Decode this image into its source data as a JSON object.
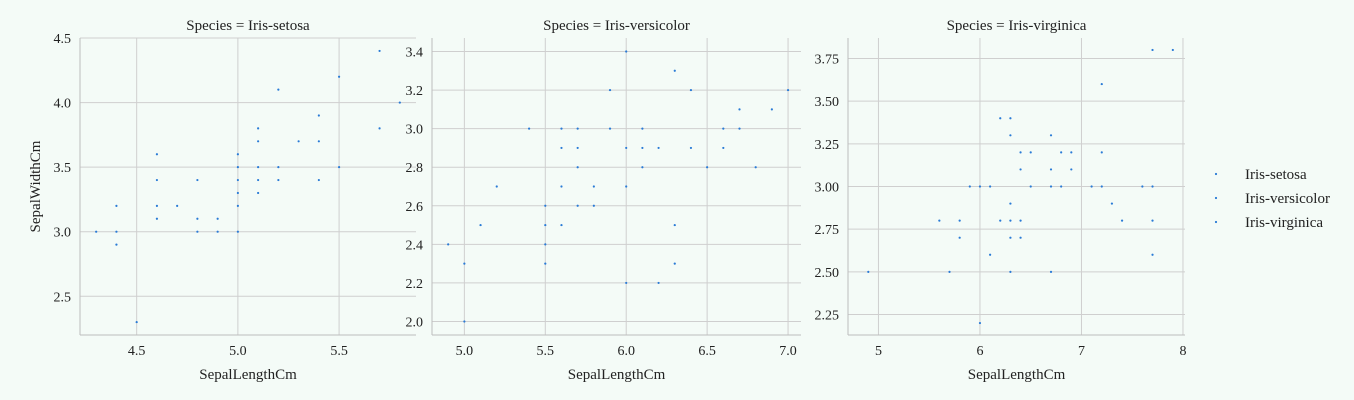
{
  "chart_data": {
    "type": "scatter",
    "facet_title_prefix": "Species = ",
    "ylabel": "SepalWidthCm",
    "legend": {
      "placement": "right",
      "entries": [
        "Iris-setosa",
        "Iris-versicolor",
        "Iris-virginica"
      ]
    },
    "point_color": "#2a7bd6",
    "grid": true,
    "panels": [
      {
        "title": "Species = Iris-setosa",
        "xlabel": "SepalLengthCm",
        "xlim": [
          4.22,
          5.88
        ],
        "ylim": [
          2.2,
          4.5
        ],
        "xticks": [
          4.5,
          5.0,
          5.5
        ],
        "xtick_labels": [
          "4.5",
          "5.0",
          "5.5"
        ],
        "yticks": [
          2.5,
          3.0,
          3.5,
          4.0,
          4.5
        ],
        "ytick_labels": [
          "2.5",
          "3.0",
          "3.5",
          "4.0",
          "4.5"
        ],
        "points": [
          [
            4.3,
            3.0
          ],
          [
            4.4,
            3.2
          ],
          [
            4.4,
            3.0
          ],
          [
            4.4,
            2.9
          ],
          [
            4.5,
            2.3
          ],
          [
            4.6,
            3.6
          ],
          [
            4.6,
            3.4
          ],
          [
            4.6,
            3.2
          ],
          [
            4.6,
            3.1
          ],
          [
            4.7,
            3.2
          ],
          [
            4.8,
            3.4
          ],
          [
            4.8,
            3.1
          ],
          [
            4.8,
            3.0
          ],
          [
            4.9,
            3.1
          ],
          [
            4.9,
            3.0
          ],
          [
            5.0,
            3.6
          ],
          [
            5.0,
            3.5
          ],
          [
            5.0,
            3.4
          ],
          [
            5.0,
            3.3
          ],
          [
            5.0,
            3.2
          ],
          [
            5.0,
            3.0
          ],
          [
            5.1,
            3.8
          ],
          [
            5.1,
            3.7
          ],
          [
            5.1,
            3.5
          ],
          [
            5.1,
            3.4
          ],
          [
            5.1,
            3.3
          ],
          [
            5.2,
            4.1
          ],
          [
            5.2,
            3.5
          ],
          [
            5.2,
            3.4
          ],
          [
            5.3,
            3.7
          ],
          [
            5.4,
            3.9
          ],
          [
            5.4,
            3.7
          ],
          [
            5.4,
            3.4
          ],
          [
            5.5,
            4.2
          ],
          [
            5.5,
            3.5
          ],
          [
            5.7,
            4.4
          ],
          [
            5.7,
            3.8
          ],
          [
            5.8,
            4.0
          ]
        ]
      },
      {
        "title": "Species = Iris-versicolor",
        "xlabel": "SepalLengthCm",
        "xlim": [
          4.8,
          7.08
        ],
        "ylim": [
          1.93,
          3.47
        ],
        "xticks": [
          5.0,
          5.5,
          6.0,
          6.5,
          7.0
        ],
        "xtick_labels": [
          "5.0",
          "5.5",
          "6.0",
          "6.5",
          "7.0"
        ],
        "yticks": [
          2.0,
          2.2,
          2.4,
          2.6,
          2.8,
          3.0,
          3.2,
          3.4
        ],
        "ytick_labels": [
          "2.0",
          "2.2",
          "2.4",
          "2.6",
          "2.8",
          "3.0",
          "3.2",
          "3.4"
        ],
        "points": [
          [
            4.9,
            2.4
          ],
          [
            5.0,
            2.3
          ],
          [
            5.0,
            2.0
          ],
          [
            5.1,
            2.5
          ],
          [
            5.2,
            2.7
          ],
          [
            5.4,
            3.0
          ],
          [
            5.5,
            2.6
          ],
          [
            5.5,
            2.5
          ],
          [
            5.5,
            2.4
          ],
          [
            5.5,
            2.3
          ],
          [
            5.6,
            3.0
          ],
          [
            5.6,
            2.9
          ],
          [
            5.6,
            2.7
          ],
          [
            5.6,
            2.5
          ],
          [
            5.7,
            3.0
          ],
          [
            5.7,
            2.9
          ],
          [
            5.7,
            2.8
          ],
          [
            5.7,
            2.6
          ],
          [
            5.8,
            2.7
          ],
          [
            5.8,
            2.6
          ],
          [
            5.9,
            3.2
          ],
          [
            5.9,
            3.0
          ],
          [
            6.0,
            3.4
          ],
          [
            6.0,
            2.9
          ],
          [
            6.0,
            2.7
          ],
          [
            6.0,
            2.2
          ],
          [
            6.1,
            3.0
          ],
          [
            6.1,
            2.9
          ],
          [
            6.1,
            2.8
          ],
          [
            6.2,
            2.9
          ],
          [
            6.2,
            2.2
          ],
          [
            6.3,
            3.3
          ],
          [
            6.3,
            2.5
          ],
          [
            6.3,
            2.3
          ],
          [
            6.4,
            3.2
          ],
          [
            6.4,
            2.9
          ],
          [
            6.5,
            2.8
          ],
          [
            6.6,
            3.0
          ],
          [
            6.6,
            2.9
          ],
          [
            6.7,
            3.1
          ],
          [
            6.7,
            3.0
          ],
          [
            6.8,
            2.8
          ],
          [
            6.9,
            3.1
          ],
          [
            7.0,
            3.2
          ]
        ]
      },
      {
        "title": "Species = Iris-virginica",
        "xlabel": "SepalLengthCm",
        "xlim": [
          4.7,
          8.02
        ],
        "ylim": [
          2.13,
          3.87
        ],
        "xticks": [
          5,
          6,
          7,
          8
        ],
        "xtick_labels": [
          "5",
          "6",
          "7",
          "8"
        ],
        "yticks": [
          2.25,
          2.5,
          2.75,
          3.0,
          3.25,
          3.5,
          3.75
        ],
        "ytick_labels": [
          "2.25",
          "2.50",
          "2.75",
          "3.00",
          "3.25",
          "3.50",
          "3.75"
        ],
        "points": [
          [
            4.9,
            2.5
          ],
          [
            5.6,
            2.8
          ],
          [
            5.7,
            2.5
          ],
          [
            5.8,
            2.8
          ],
          [
            5.8,
            2.7
          ],
          [
            5.9,
            3.0
          ],
          [
            6.0,
            3.0
          ],
          [
            6.0,
            2.2
          ],
          [
            6.1,
            3.0
          ],
          [
            6.1,
            2.6
          ],
          [
            6.2,
            3.4
          ],
          [
            6.2,
            2.8
          ],
          [
            6.3,
            3.4
          ],
          [
            6.3,
            3.3
          ],
          [
            6.3,
            2.9
          ],
          [
            6.3,
            2.8
          ],
          [
            6.3,
            2.7
          ],
          [
            6.3,
            2.5
          ],
          [
            6.4,
            3.2
          ],
          [
            6.4,
            3.1
          ],
          [
            6.4,
            2.8
          ],
          [
            6.4,
            2.7
          ],
          [
            6.5,
            3.2
          ],
          [
            6.5,
            3.0
          ],
          [
            6.7,
            3.3
          ],
          [
            6.7,
            3.1
          ],
          [
            6.7,
            3.0
          ],
          [
            6.7,
            2.5
          ],
          [
            6.8,
            3.2
          ],
          [
            6.8,
            3.0
          ],
          [
            6.9,
            3.2
          ],
          [
            6.9,
            3.1
          ],
          [
            7.1,
            3.0
          ],
          [
            7.2,
            3.6
          ],
          [
            7.2,
            3.2
          ],
          [
            7.2,
            3.0
          ],
          [
            7.3,
            2.9
          ],
          [
            7.4,
            2.8
          ],
          [
            7.6,
            3.0
          ],
          [
            7.7,
            3.8
          ],
          [
            7.7,
            3.0
          ],
          [
            7.7,
            2.8
          ],
          [
            7.7,
            2.6
          ],
          [
            7.9,
            3.8
          ]
        ]
      }
    ]
  }
}
